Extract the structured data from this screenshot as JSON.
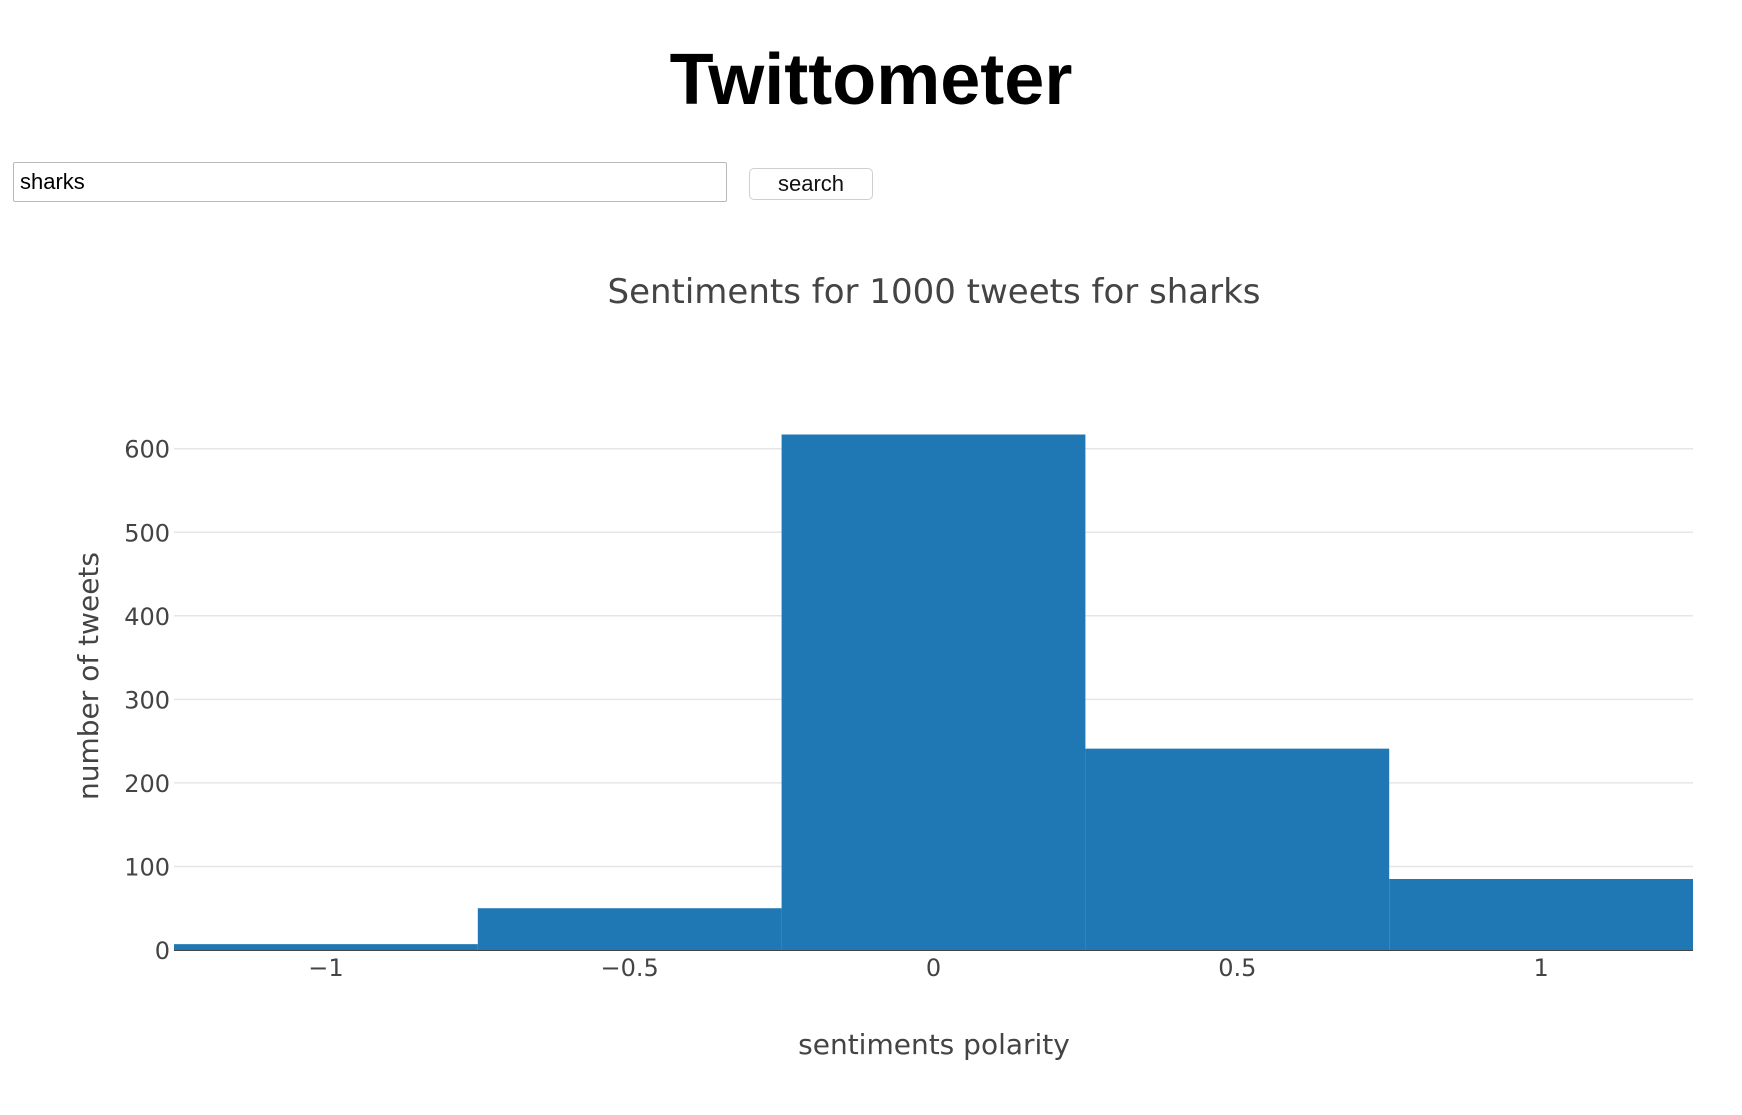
{
  "header": {
    "title": "Twittometer"
  },
  "search": {
    "value": "sharks",
    "button_label": "search"
  },
  "chart_data": {
    "type": "bar",
    "title": "Sentiments for 1000 tweets for sharks",
    "xlabel": "sentiments polarity",
    "ylabel": "number of tweets",
    "bins": [
      {
        "x0": -1.25,
        "x1": -0.75,
        "value": 7
      },
      {
        "x0": -0.75,
        "x1": -0.25,
        "value": 50
      },
      {
        "x0": -0.25,
        "x1": 0.25,
        "value": 617
      },
      {
        "x0": 0.25,
        "x1": 0.75,
        "value": 241
      },
      {
        "x0": 0.75,
        "x1": 1.25,
        "value": 85
      }
    ],
    "xlim": [
      -1.25,
      1.25
    ],
    "ylim": [
      0,
      620
    ],
    "xticks": [
      {
        "value": -1,
        "label": "−1"
      },
      {
        "value": -0.5,
        "label": "−0.5"
      },
      {
        "value": 0,
        "label": "0"
      },
      {
        "value": 0.5,
        "label": "0.5"
      },
      {
        "value": 1,
        "label": "1"
      }
    ],
    "yticks": [
      {
        "value": 0,
        "label": "0"
      },
      {
        "value": 100,
        "label": "100"
      },
      {
        "value": 200,
        "label": "200"
      },
      {
        "value": 300,
        "label": "300"
      },
      {
        "value": 400,
        "label": "400"
      },
      {
        "value": 500,
        "label": "500"
      },
      {
        "value": 600,
        "label": "600"
      }
    ],
    "grid": true,
    "colors": {
      "bar": "#1f77b4",
      "grid": "#e6e6e6",
      "text": "#444444"
    }
  }
}
